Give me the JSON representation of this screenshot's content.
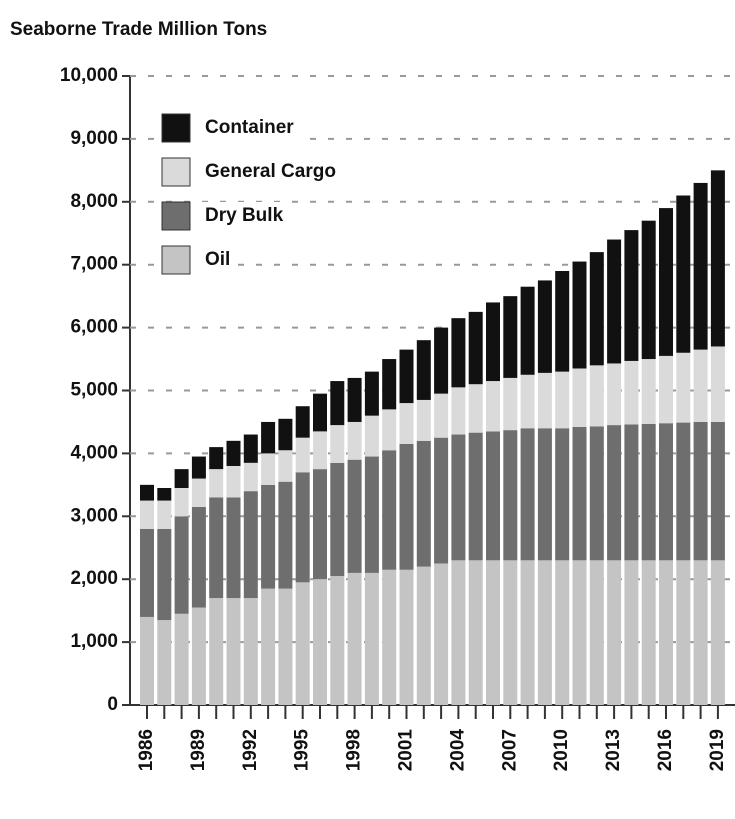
{
  "chart_data": {
    "type": "stacked_bar",
    "title": "Seaborne Trade Million Tons",
    "categories": [
      "1986",
      null,
      null,
      "1989",
      null,
      null,
      "1992",
      null,
      null,
      "1995",
      null,
      null,
      "1998",
      null,
      null,
      "2001",
      null,
      null,
      "2004",
      null,
      null,
      "2007",
      null,
      null,
      "2010",
      null,
      null,
      "2013",
      null,
      null,
      "2016",
      null,
      null,
      "2019"
    ],
    "series": [
      {
        "name": "Oil",
        "color": "#c4c4c4",
        "values": [
          1400,
          1350,
          1450,
          1550,
          1700,
          1700,
          1700,
          1850,
          1850,
          1950,
          2000,
          2050,
          2100,
          2100,
          2150,
          2150,
          2200,
          2250,
          2300,
          2300,
          2300,
          2300,
          2300,
          2300,
          2300,
          2300,
          2300,
          2300,
          2300,
          2300,
          2300,
          2300,
          2300,
          2300
        ]
      },
      {
        "name": "Dry Bulk",
        "color": "#6e6e6e",
        "values": [
          1400,
          1450,
          1550,
          1600,
          1600,
          1600,
          1700,
          1650,
          1700,
          1750,
          1750,
          1800,
          1800,
          1850,
          1900,
          2000,
          2000,
          2000,
          2000,
          2030,
          2050,
          2070,
          2100,
          2100,
          2100,
          2120,
          2130,
          2150,
          2160,
          2170,
          2180,
          2190,
          2200,
          2200
        ]
      },
      {
        "name": "General Cargo",
        "color": "#dadada",
        "values": [
          450,
          450,
          450,
          450,
          450,
          500,
          450,
          500,
          500,
          550,
          600,
          600,
          600,
          650,
          650,
          650,
          650,
          700,
          750,
          770,
          800,
          830,
          850,
          880,
          900,
          930,
          970,
          980,
          1010,
          1030,
          1070,
          1110,
          1150,
          1200
        ]
      },
      {
        "name": "Container",
        "color": "#111111",
        "values": [
          250,
          200,
          300,
          350,
          350,
          400,
          450,
          500,
          500,
          500,
          600,
          700,
          700,
          700,
          800,
          850,
          950,
          1050,
          1100,
          1150,
          1250,
          1300,
          1400,
          1470,
          1600,
          1700,
          1800,
          1970,
          2080,
          2200,
          2350,
          2500,
          2650,
          2800
        ]
      }
    ],
    "ylim": [
      0,
      10000
    ],
    "yticks": [
      0,
      {
        "value": 1000,
        "label": "1,000"
      },
      {
        "value": 2000,
        "label": "2,000"
      },
      {
        "value": 3000,
        "label": "3,000"
      },
      {
        "value": 4000,
        "label": "4,000"
      },
      {
        "value": 5000,
        "label": "5,000"
      },
      {
        "value": 6000,
        "label": "6,000"
      },
      {
        "value": 7000,
        "label": "7,000"
      },
      {
        "value": 8000,
        "label": "8,000"
      },
      {
        "value": 9000,
        "label": "9,000"
      },
      {
        "value": 10000,
        "label": "10,000"
      }
    ],
    "grid": true,
    "legend": "top-left"
  }
}
